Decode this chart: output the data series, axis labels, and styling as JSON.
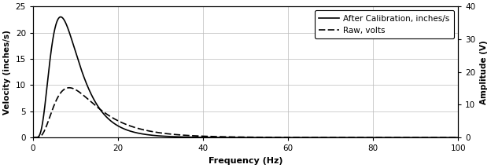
{
  "xlabel": "Frequency (Hz)",
  "ylabel_left": "Velocity (inches/s)",
  "ylabel_right": "Amplitude (V)",
  "xlim": [
    0,
    100
  ],
  "ylim_left": [
    0,
    25
  ],
  "ylim_right": [
    0,
    40
  ],
  "xticks": [
    0,
    20,
    40,
    60,
    80,
    100
  ],
  "yticks_left": [
    0,
    5,
    10,
    15,
    20,
    25
  ],
  "yticks_right": [
    0,
    10,
    20,
    30,
    40
  ],
  "legend_labels": [
    "After Calibration, inches/s",
    "Raw, volts"
  ],
  "line_color": "#000000",
  "background_color": "#ffffff",
  "grid_color": "#bbbbbb",
  "cal_peak_freq": 6.5,
  "cal_peak_val": 23.0,
  "cal_sigma": 0.52,
  "raw_peak_freq": 8.5,
  "raw_peak_val": 9.5,
  "raw_sigma": 0.58,
  "figwidth": 6.24,
  "figheight": 2.14,
  "dpi": 100
}
